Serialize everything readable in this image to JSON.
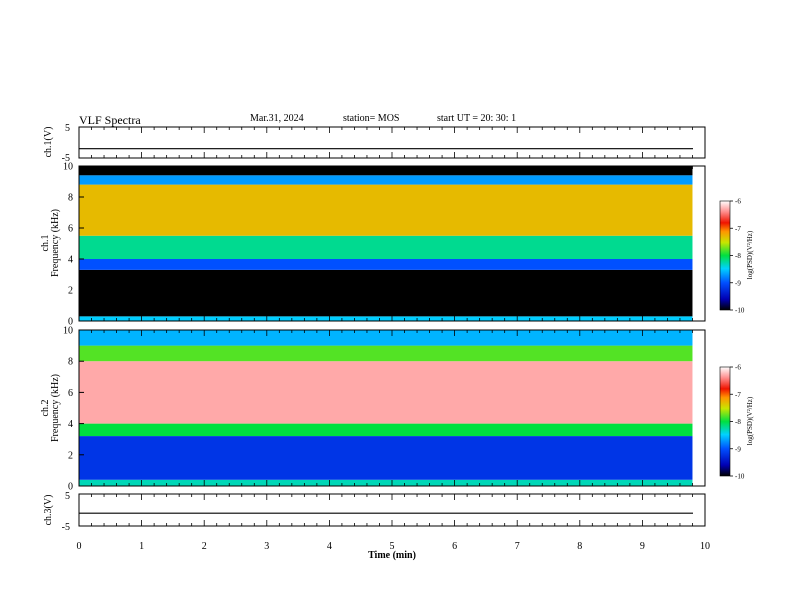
{
  "header": {
    "title": "VLF Spectra",
    "date": "Mar.31, 2024",
    "station": "station= MOS",
    "start": "start  UT  =   20: 30: 1"
  },
  "chart_data": [
    {
      "type": "line",
      "name": "ch1-voltage",
      "ylabel": "ch.1(V)",
      "ylim": [
        -5,
        5
      ],
      "yticks": [
        "5",
        "-5"
      ],
      "xlim": [
        0,
        10
      ],
      "baseline_value": -2
    },
    {
      "type": "heatmap",
      "name": "ch1-spectrogram",
      "ylabel_line1": "ch.1",
      "ylabel_line2": "Frequency (kHz)",
      "ylim": [
        0,
        10
      ],
      "yticks": [
        "0",
        "2",
        "4",
        "6",
        "8",
        "10"
      ],
      "xlim": [
        0,
        10
      ],
      "data_end_min": 9.8,
      "colorbar": {
        "label": "log(PSD)(V²/Hz)",
        "ticks": [
          "-6",
          "-7",
          "-8",
          "-9",
          "-10"
        ],
        "range": [
          -10,
          -6
        ]
      },
      "bands": [
        {
          "from_khz": 0,
          "to_khz": 0.3,
          "level": -8.5
        },
        {
          "from_khz": 0.3,
          "to_khz": 3.3,
          "level": -10
        },
        {
          "from_khz": 3.3,
          "to_khz": 4.0,
          "level": -9.0
        },
        {
          "from_khz": 4.0,
          "to_khz": 5.5,
          "level": -8.2
        },
        {
          "from_khz": 5.5,
          "to_khz": 8.8,
          "level": -7.3
        },
        {
          "from_khz": 8.8,
          "to_khz": 9.4,
          "level": -8.7
        },
        {
          "from_khz": 9.4,
          "to_khz": 10,
          "level": -10
        }
      ]
    },
    {
      "type": "heatmap",
      "name": "ch2-spectrogram",
      "ylabel_line1": "ch.2",
      "ylabel_line2": "Frequency (kHz)",
      "ylim": [
        0,
        10
      ],
      "yticks": [
        "0",
        "2",
        "4",
        "6",
        "8",
        "10"
      ],
      "xlim": [
        0,
        10
      ],
      "data_end_min": 9.8,
      "colorbar": {
        "label": "log(PSD)(V²/Hz)",
        "ticks": [
          "-6",
          "-7",
          "-8",
          "-9",
          "-10"
        ],
        "range": [
          -10,
          -6
        ]
      },
      "bands": [
        {
          "from_khz": 0,
          "to_khz": 0.4,
          "level": -8.3
        },
        {
          "from_khz": 0.4,
          "to_khz": 3.2,
          "level": -9.2
        },
        {
          "from_khz": 3.2,
          "to_khz": 4.0,
          "level": -8.0
        },
        {
          "from_khz": 4.0,
          "to_khz": 8.0,
          "level": -6.3
        },
        {
          "from_khz": 8.0,
          "to_khz": 9.0,
          "level": -7.8
        },
        {
          "from_khz": 9.0,
          "to_khz": 10,
          "level": -8.6
        }
      ]
    },
    {
      "type": "line",
      "name": "ch3-voltage",
      "ylabel": "ch.3(V)",
      "ylim": [
        -5,
        5
      ],
      "yticks": [
        "5",
        "-5"
      ],
      "xlim": [
        0,
        10
      ],
      "baseline_value": -1
    }
  ],
  "xaxis": {
    "label": "Time (min)",
    "ticks": [
      "0",
      "1",
      "2",
      "3",
      "4",
      "5",
      "6",
      "7",
      "8",
      "9",
      "10"
    ]
  }
}
